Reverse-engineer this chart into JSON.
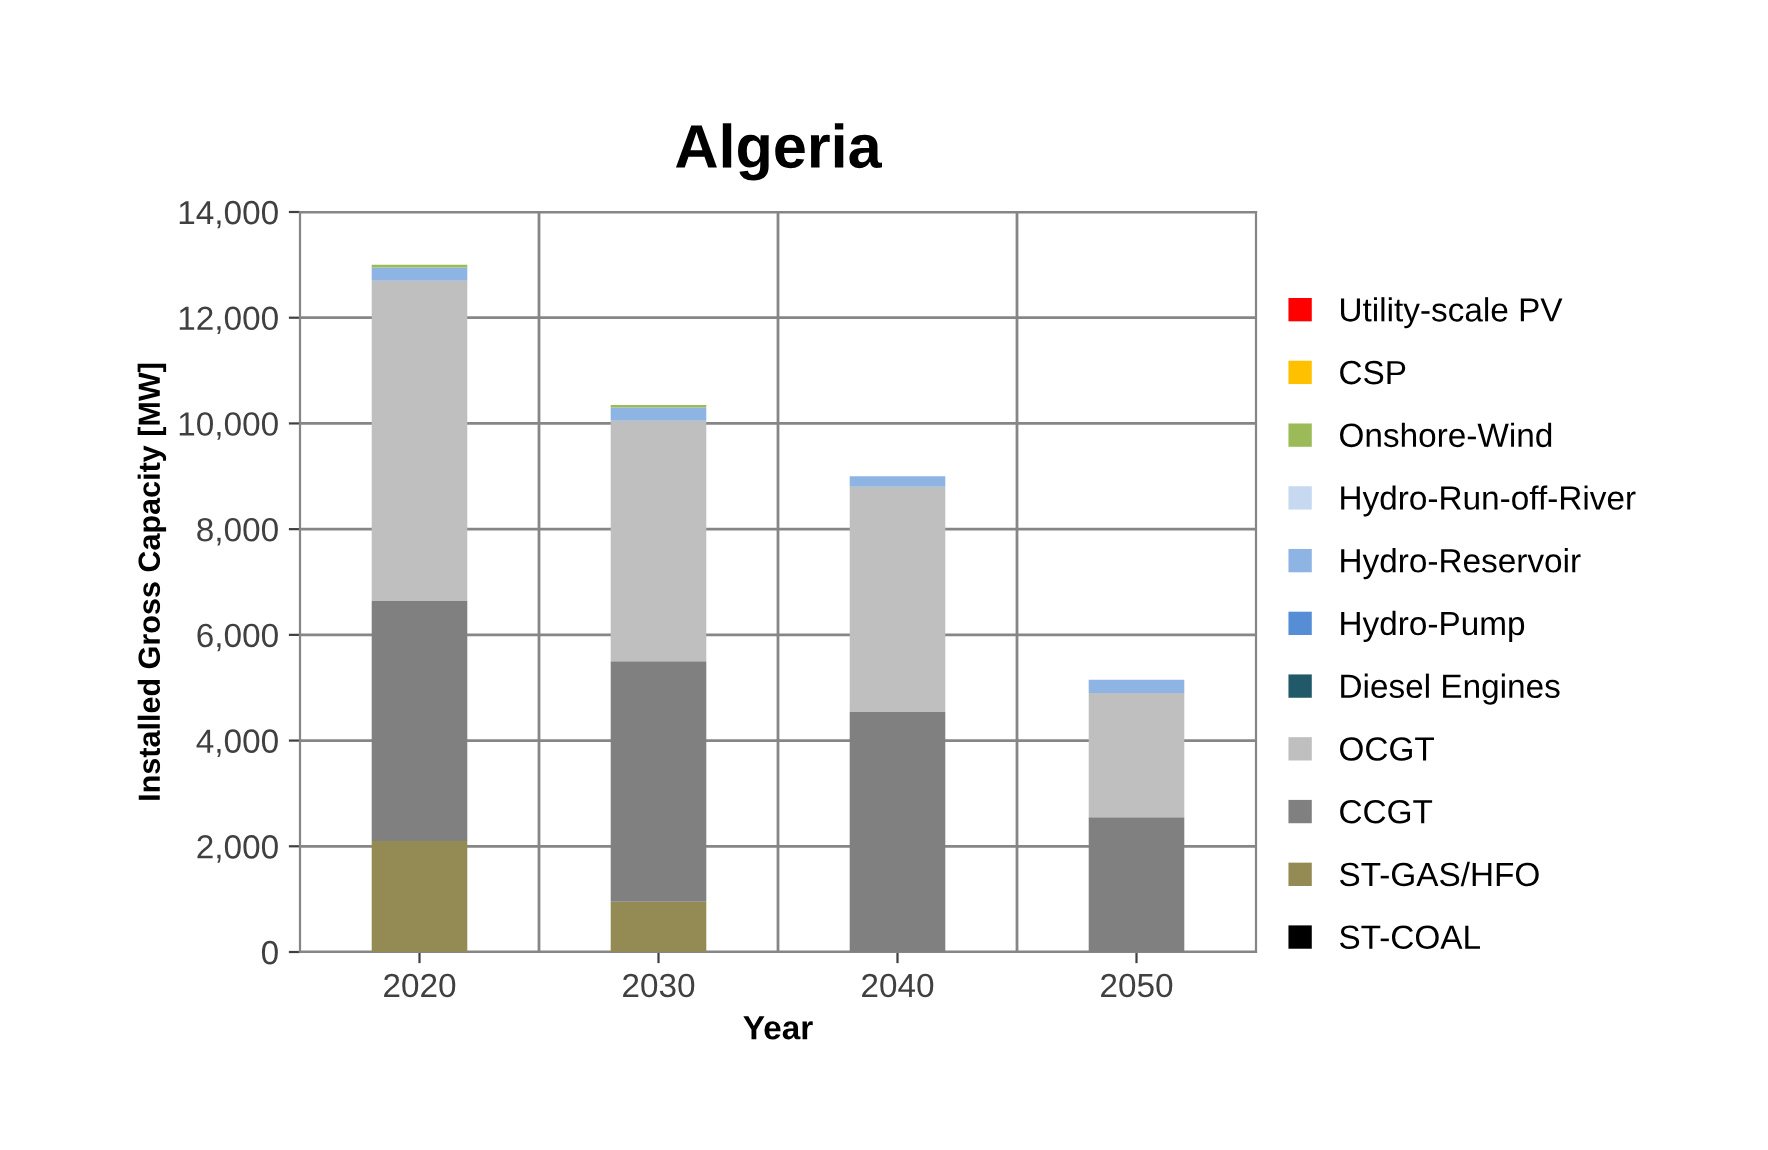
{
  "chart_data": {
    "type": "bar",
    "stacked": true,
    "title": "Algeria",
    "xlabel": "Year",
    "ylabel": "Installed Gross Capacity [MW]",
    "categories": [
      "2020",
      "2030",
      "2040",
      "2050"
    ],
    "series": [
      {
        "name": "ST-COAL",
        "color": "#000000",
        "values": [
          0,
          0,
          0,
          0
        ]
      },
      {
        "name": "ST-GAS/HFO",
        "color": "#948a54",
        "values": [
          2100,
          950,
          0,
          0
        ]
      },
      {
        "name": "CCGT",
        "color": "#808080",
        "values": [
          4550,
          4550,
          4550,
          2550
        ]
      },
      {
        "name": "OCGT",
        "color": "#bfbfbf",
        "values": [
          6050,
          4550,
          4250,
          2350
        ]
      },
      {
        "name": "Diesel Engines",
        "color": "#215968",
        "values": [
          0,
          0,
          0,
          0
        ]
      },
      {
        "name": "Hydro-Pump",
        "color": "#558ed5",
        "values": [
          0,
          0,
          0,
          0
        ]
      },
      {
        "name": "Hydro-Reservoir",
        "color": "#8eb4e3",
        "values": [
          250,
          250,
          200,
          250
        ]
      },
      {
        "name": "Hydro-Run-off-River",
        "color": "#c6d9f1",
        "values": [
          0,
          0,
          0,
          0
        ]
      },
      {
        "name": "Onshore-Wind",
        "color": "#9bbb59",
        "values": [
          50,
          50,
          0,
          0
        ]
      },
      {
        "name": "CSP",
        "color": "#ffc000",
        "values": [
          0,
          0,
          0,
          0
        ]
      },
      {
        "name": "Utility-scale PV",
        "color": "#ff0000",
        "values": [
          0,
          0,
          0,
          0
        ]
      }
    ],
    "ylim": [
      0,
      14000
    ],
    "yticks": [
      {
        "value": 0,
        "label": "0"
      },
      {
        "value": 2000,
        "label": "2,000"
      },
      {
        "value": 4000,
        "label": "4,000"
      },
      {
        "value": 6000,
        "label": "6,000"
      },
      {
        "value": 8000,
        "label": "8,000"
      },
      {
        "value": 10000,
        "label": "10,000"
      },
      {
        "value": 12000,
        "label": "12,000"
      },
      {
        "value": 14000,
        "label": "14,000"
      }
    ],
    "grid": true,
    "legend": "right"
  }
}
